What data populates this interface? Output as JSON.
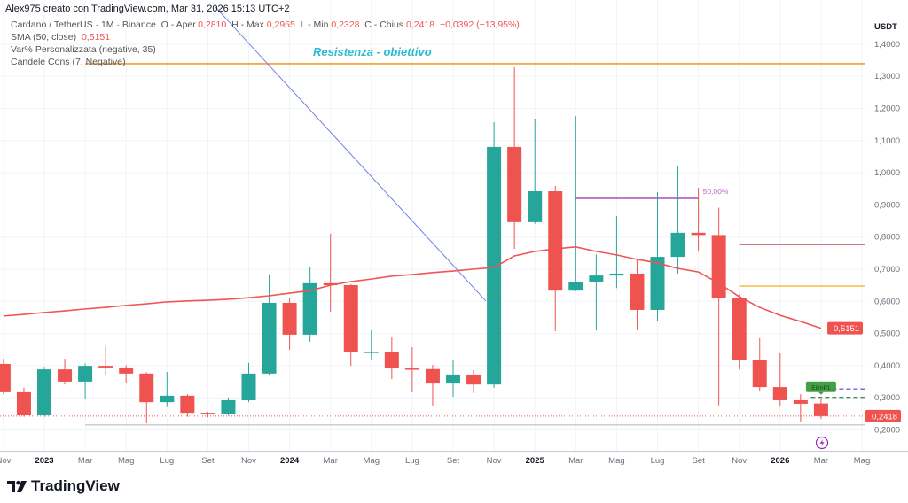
{
  "header": {
    "text": "Alex975 creato con TradingView.com, Mar 31, 2026 15:13 UTC+2"
  },
  "legend": {
    "symbol": "Cardano / TetherUS · 1M · Binance",
    "open_label": "O - Aper.",
    "open": "0,2810",
    "high_label": "H - Max.",
    "high": "0,2955",
    "low_label": "L - Min.",
    "low": "0,2328",
    "close_label": "C - Chius.",
    "close": "0,2418",
    "change": "−0,0392 (−13,95%)",
    "sma_label": "SMA (50, close)",
    "sma_value": "0,5151",
    "ind2": "Var% Personalizzata (negative, 35)",
    "ind3": "Candele Cons (7, Negative)"
  },
  "logo": {
    "text": "TradingView"
  },
  "colors": {
    "up": "#26a69a",
    "down": "#ef5350",
    "sma": "#f05454",
    "resistance": "#f0a030",
    "annotation": "#2bbcd4"
  },
  "chart_data": {
    "type": "candlestick",
    "title": "Cardano / TetherUS · 1M · Binance",
    "ylabel": "USDT",
    "ylim": [
      0.2,
      1.4
    ],
    "yticks": [
      "1,4000",
      "1,3000",
      "1,2000",
      "1,1000",
      "1,0000",
      "0,9000",
      "0,8000",
      "0,7000",
      "0,6000",
      "0,5000",
      "0,4000",
      "0,3000",
      "0,2000"
    ],
    "ytick_values": [
      1.4,
      1.3,
      1.2,
      1.1,
      1.0,
      0.9,
      0.8,
      0.7,
      0.6,
      0.5,
      0.4,
      0.3,
      0.2
    ],
    "xticks": [
      {
        "m": -2,
        "label": "Nov",
        "bold": false
      },
      {
        "m": 0,
        "label": "2023",
        "bold": true
      },
      {
        "m": 2,
        "label": "Mar",
        "bold": false
      },
      {
        "m": 4,
        "label": "Mag",
        "bold": false
      },
      {
        "m": 6,
        "label": "Lug",
        "bold": false
      },
      {
        "m": 8,
        "label": "Set",
        "bold": false
      },
      {
        "m": 10,
        "label": "Nov",
        "bold": false
      },
      {
        "m": 12,
        "label": "2024",
        "bold": true
      },
      {
        "m": 14,
        "label": "Mar",
        "bold": false
      },
      {
        "m": 16,
        "label": "Mag",
        "bold": false
      },
      {
        "m": 18,
        "label": "Lug",
        "bold": false
      },
      {
        "m": 20,
        "label": "Set",
        "bold": false
      },
      {
        "m": 22,
        "label": "Nov",
        "bold": false
      },
      {
        "m": 24,
        "label": "2025",
        "bold": true
      },
      {
        "m": 26,
        "label": "Mar",
        "bold": false
      },
      {
        "m": 28,
        "label": "Mag",
        "bold": false
      },
      {
        "m": 30,
        "label": "Lug",
        "bold": false
      },
      {
        "m": 32,
        "label": "Set",
        "bold": false
      },
      {
        "m": 34,
        "label": "Nov",
        "bold": false
      },
      {
        "m": 36,
        "label": "2026",
        "bold": true
      },
      {
        "m": 38,
        "label": "Mar",
        "bold": false
      },
      {
        "m": 40,
        "label": "Mag",
        "bold": false
      }
    ],
    "candles_start_month": -2,
    "ohlc": [
      [
        0.404,
        0.42,
        0.31,
        0.316
      ],
      [
        0.316,
        0.33,
        0.24,
        0.244
      ],
      [
        0.244,
        0.395,
        0.24,
        0.387
      ],
      [
        0.387,
        0.42,
        0.34,
        0.349
      ],
      [
        0.349,
        0.405,
        0.296,
        0.398
      ],
      [
        0.398,
        0.459,
        0.371,
        0.393
      ],
      [
        0.393,
        0.4,
        0.346,
        0.374
      ],
      [
        0.374,
        0.378,
        0.219,
        0.285
      ],
      [
        0.285,
        0.379,
        0.27,
        0.305
      ],
      [
        0.305,
        0.31,
        0.24,
        0.252
      ],
      [
        0.252,
        0.255,
        0.238,
        0.248
      ],
      [
        0.248,
        0.3,
        0.243,
        0.291
      ],
      [
        0.291,
        0.407,
        0.285,
        0.374
      ],
      [
        0.374,
        0.68,
        0.37,
        0.594
      ],
      [
        0.594,
        0.61,
        0.448,
        0.495
      ],
      [
        0.495,
        0.707,
        0.473,
        0.655
      ],
      [
        0.655,
        0.809,
        0.566,
        0.649
      ],
      [
        0.649,
        0.652,
        0.398,
        0.44
      ],
      [
        0.44,
        0.509,
        0.418,
        0.442
      ],
      [
        0.442,
        0.489,
        0.357,
        0.39
      ],
      [
        0.39,
        0.456,
        0.316,
        0.388
      ],
      [
        0.388,
        0.401,
        0.274,
        0.343
      ],
      [
        0.343,
        0.415,
        0.302,
        0.371
      ],
      [
        0.371,
        0.385,
        0.313,
        0.34
      ],
      [
        0.34,
        1.156,
        0.33,
        1.079
      ],
      [
        1.079,
        1.327,
        0.762,
        0.845
      ],
      [
        0.845,
        1.167,
        0.84,
        0.941
      ],
      [
        0.941,
        0.958,
        0.506,
        0.632
      ],
      [
        0.632,
        1.175,
        0.63,
        0.66
      ],
      [
        0.66,
        0.745,
        0.508,
        0.679
      ],
      [
        0.679,
        0.864,
        0.64,
        0.685
      ],
      [
        0.685,
        0.726,
        0.509,
        0.572
      ],
      [
        0.572,
        0.938,
        0.536,
        0.737
      ],
      [
        0.737,
        1.018,
        0.685,
        0.812
      ],
      [
        0.812,
        0.952,
        0.756,
        0.805
      ],
      [
        0.805,
        0.89,
        0.275,
        0.608
      ],
      [
        0.608,
        0.62,
        0.387,
        0.415
      ],
      [
        0.415,
        0.484,
        0.32,
        0.332
      ],
      [
        0.332,
        0.437,
        0.272,
        0.291
      ],
      [
        0.291,
        0.31,
        0.222,
        0.28
      ],
      [
        0.281,
        0.2955,
        0.2328,
        0.2418
      ]
    ],
    "sma": [
      0.553,
      0.558,
      0.564,
      0.569,
      0.575,
      0.58,
      0.586,
      0.591,
      0.597,
      0.6,
      0.602,
      0.605,
      0.61,
      0.616,
      0.624,
      0.632,
      0.649,
      0.66,
      0.668,
      0.677,
      0.682,
      0.688,
      0.693,
      0.699,
      0.704,
      0.74,
      0.754,
      0.762,
      0.768,
      0.754,
      0.743,
      0.729,
      0.718,
      0.701,
      0.69,
      0.655,
      0.613,
      0.58,
      0.555,
      0.536,
      0.5151
    ],
    "price_labels": [
      {
        "value": 0.5151,
        "text": "0,5151"
      },
      {
        "value": 0.2418,
        "text": "0,2418"
      }
    ],
    "drawings": {
      "resistance": {
        "price": 1.338,
        "from_m": 2,
        "label": "Resistenza - obiettivo"
      },
      "trendline": {
        "m1": 8.37,
        "p1": 1.514,
        "m2": 21.6,
        "p2": 0.6
      },
      "fib_line": {
        "price": 0.919,
        "from_m": 26,
        "to_m": 32,
        "label": "50,00%"
      },
      "red_level": {
        "price": 0.776,
        "from_m": 34
      },
      "yellow_level": {
        "price": 0.646,
        "from_m": 34
      },
      "purple_dashed": {
        "price": 0.326,
        "from_m": 37.5
      },
      "green_dashed": {
        "price": 0.3,
        "from_m": 37.5
      },
      "gray_level": {
        "price": 0.214,
        "from_m": 2
      },
      "entry_tag": {
        "text": "E8mP1",
        "price": 0.33,
        "m": 38
      }
    }
  }
}
